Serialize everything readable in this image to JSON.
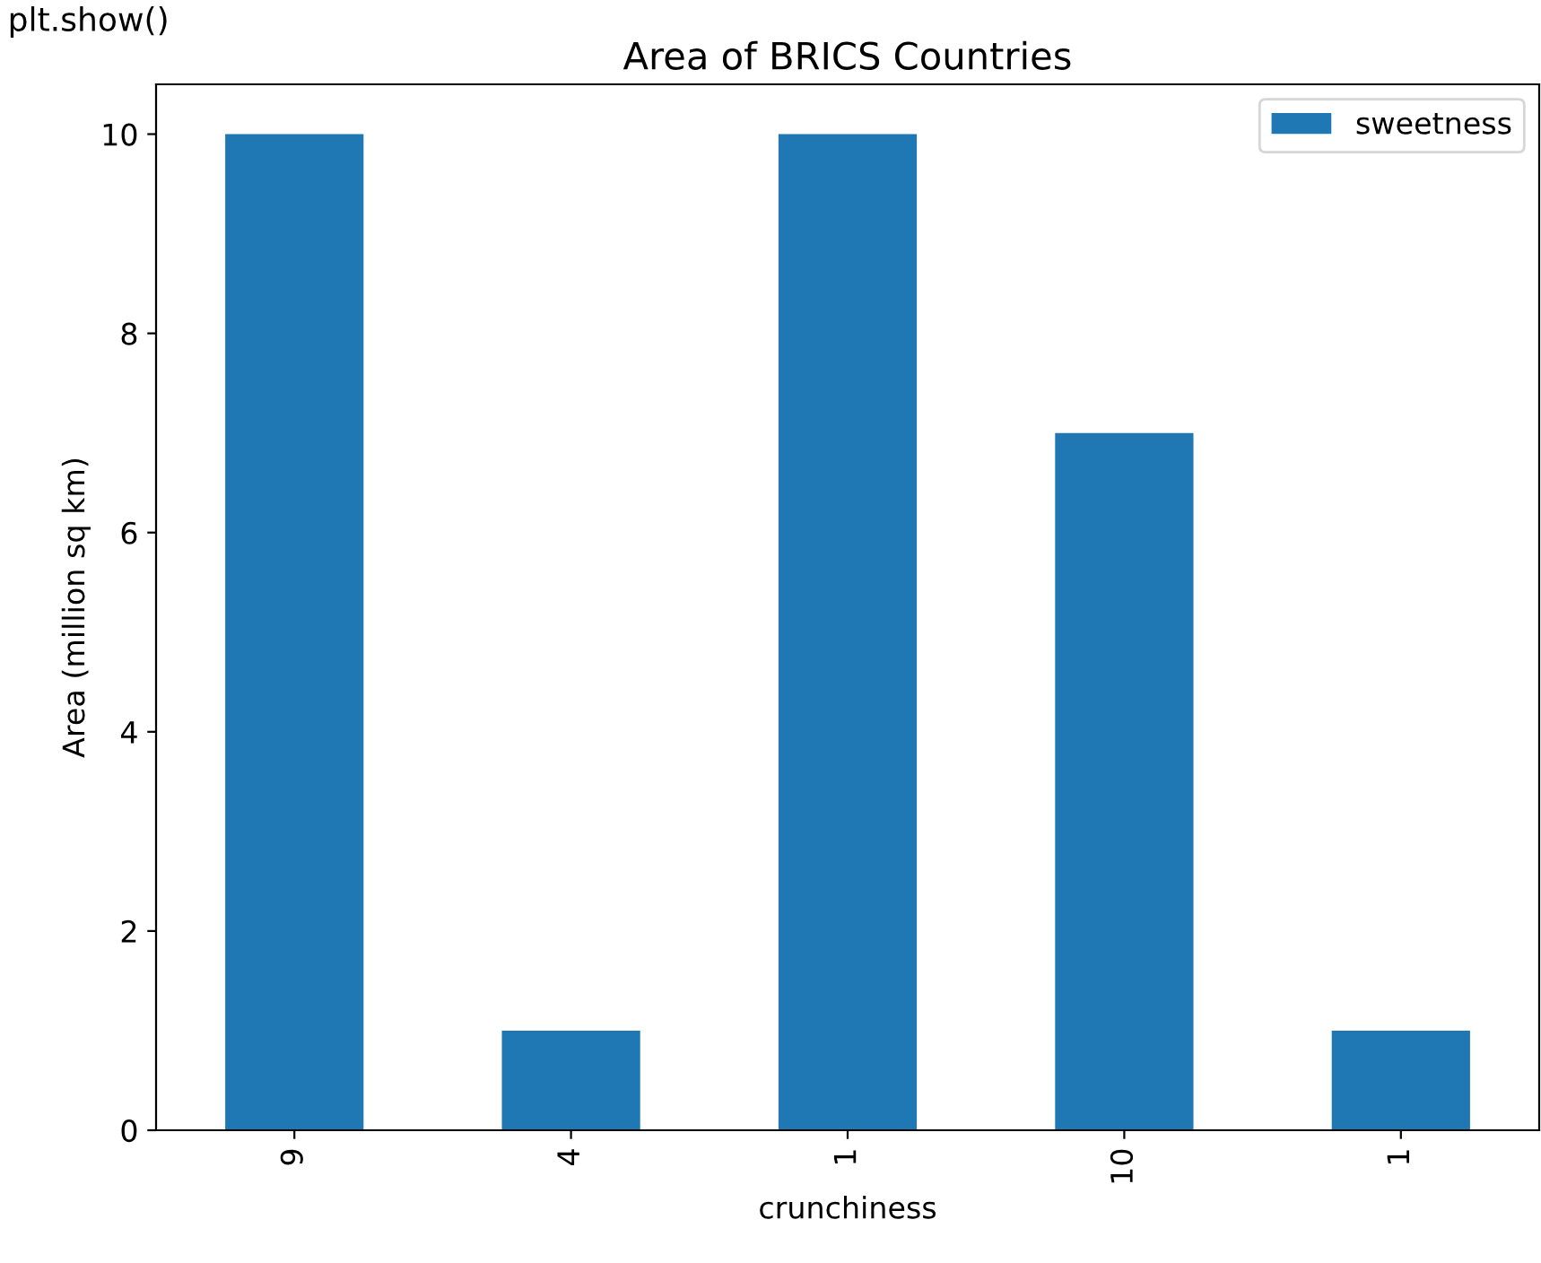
{
  "chart_data": {
    "type": "bar",
    "title": "Area of BRICS Countries",
    "xlabel": "crunchiness",
    "ylabel": "Area (million sq km)",
    "annotations": [
      "plt.show()"
    ],
    "categories": [
      "9",
      "4",
      "1",
      "10",
      "1"
    ],
    "series": [
      {
        "name": "sweetness",
        "color": "#1f77b4",
        "values": [
          10,
          1,
          10,
          7,
          1
        ]
      }
    ],
    "ylim": [
      0,
      10.5
    ],
    "yticks": [
      0,
      2,
      4,
      6,
      8,
      10
    ],
    "legend": "top right",
    "grid": false
  }
}
